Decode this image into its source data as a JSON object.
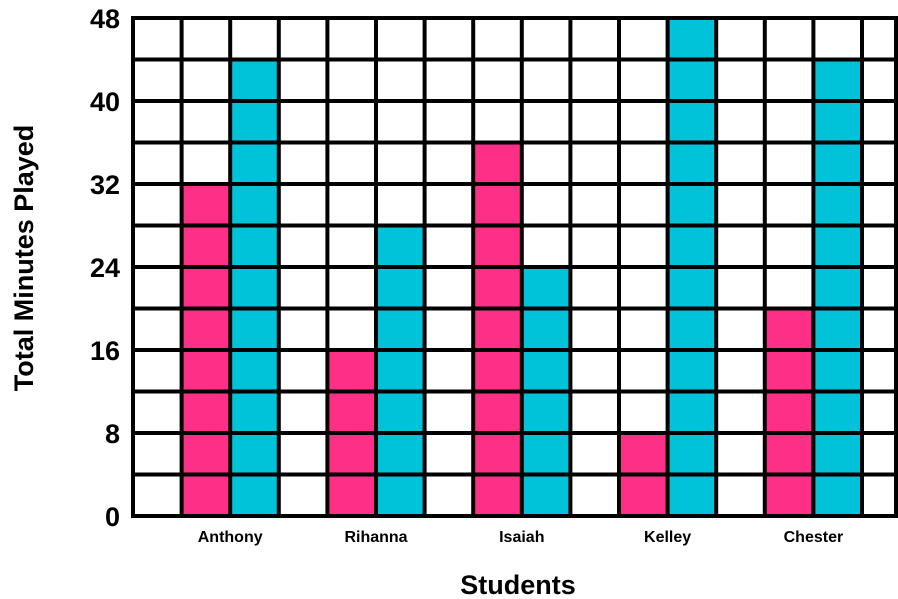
{
  "chart_data": {
    "type": "bar",
    "title": "",
    "xlabel": "Students",
    "ylabel": "Total Minutes Played",
    "categories": [
      "Anthony",
      "Rihanna",
      "Isaiah",
      "Kelley",
      "Chester"
    ],
    "series": [
      {
        "color": "#fd2f86",
        "values": [
          32,
          16,
          36,
          8,
          20
        ]
      },
      {
        "color": "#00c2d9",
        "values": [
          44,
          28,
          24,
          48,
          44
        ]
      }
    ],
    "ylim": [
      0,
      48
    ],
    "yticks": [
      0,
      8,
      16,
      24,
      32,
      40,
      48
    ],
    "grid": true,
    "grid_step": 4,
    "legend": "none"
  }
}
